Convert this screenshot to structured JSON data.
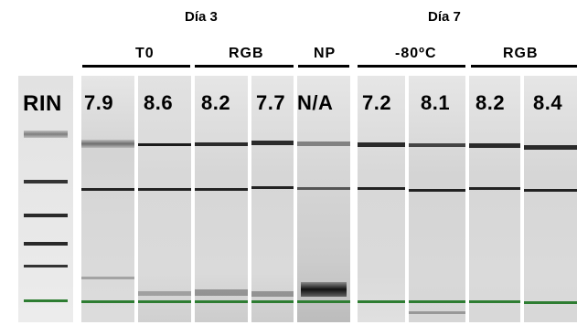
{
  "days": [
    {
      "label": "Día 3"
    },
    {
      "label": "Día 7"
    }
  ],
  "groups": [
    {
      "label": "T0"
    },
    {
      "label": "RGB"
    },
    {
      "label": "NP"
    },
    {
      "label": "-80ºC"
    },
    {
      "label": "RGB"
    }
  ],
  "rin_label": "RIN",
  "lanes": [
    {
      "rin": "7.9"
    },
    {
      "rin": "8.6"
    },
    {
      "rin": "8.2"
    },
    {
      "rin": "7.7"
    },
    {
      "rin": "N/A"
    },
    {
      "rin": "7.2"
    },
    {
      "rin": "8.1"
    },
    {
      "rin": "8.2"
    },
    {
      "rin": "8.4"
    }
  ],
  "colors": {
    "marker_band": "#2e7d32"
  }
}
